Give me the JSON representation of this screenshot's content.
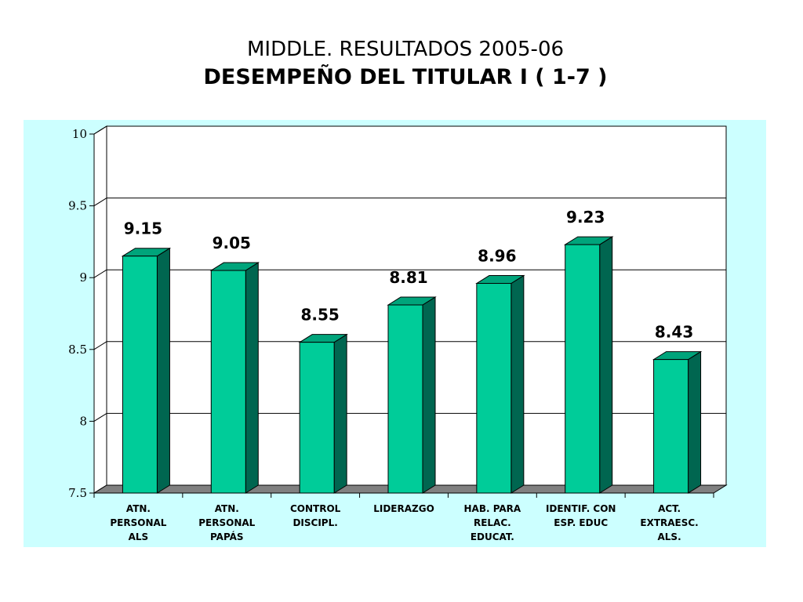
{
  "slide": {
    "title": "MIDDLE. RESULTADOS 2005-06",
    "subtitle": "DESEMPEÑO DEL TITULAR I ( 1-7 )"
  },
  "colors": {
    "panel_background": "#ccffff",
    "plot_background": "#ffffff",
    "bar_front": "#00cc99",
    "bar_side": "#006650",
    "bar_top": "#00a47b",
    "floor": "#808080"
  },
  "chart_data": {
    "type": "bar",
    "style": "3d",
    "title": "",
    "xlabel": "",
    "ylabel": "",
    "categories": [
      [
        "ATN.",
        "PERSONAL",
        "ALS"
      ],
      [
        "ATN.",
        "PERSONAL",
        "PAPÁS"
      ],
      [
        "CONTROL",
        "DISCIPL."
      ],
      [
        "LIDERAZGO"
      ],
      [
        "HAB. PARA",
        "RELAC.",
        "EDUCAT."
      ],
      [
        "IDENTIF. CON",
        "ESP. EDUC"
      ],
      [
        "ACT.",
        "EXTRAESC.",
        "ALS."
      ]
    ],
    "values": [
      9.15,
      9.05,
      8.55,
      8.81,
      8.96,
      9.23,
      8.43
    ],
    "data_labels": [
      "9.15",
      "9.05",
      "8.55",
      "8.81",
      "8.96",
      "9.23",
      "8.43"
    ],
    "ylim": [
      7.5,
      10
    ],
    "yticks": [
      7.5,
      8,
      8.5,
      9,
      9.5,
      10
    ],
    "ytick_labels": [
      "7.5",
      "8",
      "8.5",
      "9",
      "9.5",
      "10"
    ],
    "grid": "horizontal",
    "legend": "none"
  }
}
